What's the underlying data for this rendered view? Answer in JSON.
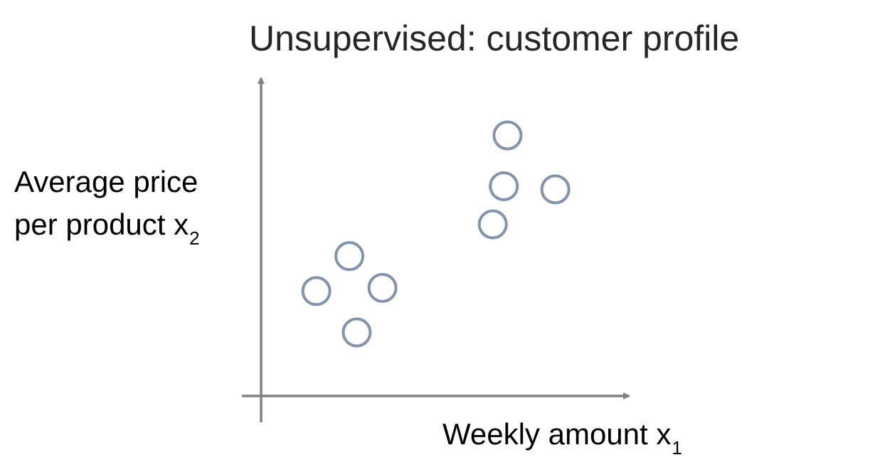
{
  "chart_data": {
    "type": "scatter",
    "title": "Unsupervised:  customer profile",
    "xlabel": {
      "text": "Weekly amount x",
      "subscript": "1"
    },
    "ylabel": {
      "line1": "Average price",
      "line2": "per product x",
      "subscript": "2"
    },
    "ticks": false,
    "grid": false,
    "xlim": [
      0,
      100
    ],
    "ylim": [
      0,
      100
    ],
    "marker": "open-circle",
    "marker_color": "#8293AE",
    "axis_color": "#808080",
    "points": [
      {
        "x": 24,
        "y": 44
      },
      {
        "x": 15,
        "y": 33
      },
      {
        "x": 33,
        "y": 34
      },
      {
        "x": 26,
        "y": 20
      },
      {
        "x": 67,
        "y": 82
      },
      {
        "x": 66,
        "y": 66
      },
      {
        "x": 80,
        "y": 65
      },
      {
        "x": 63,
        "y": 54
      }
    ]
  }
}
